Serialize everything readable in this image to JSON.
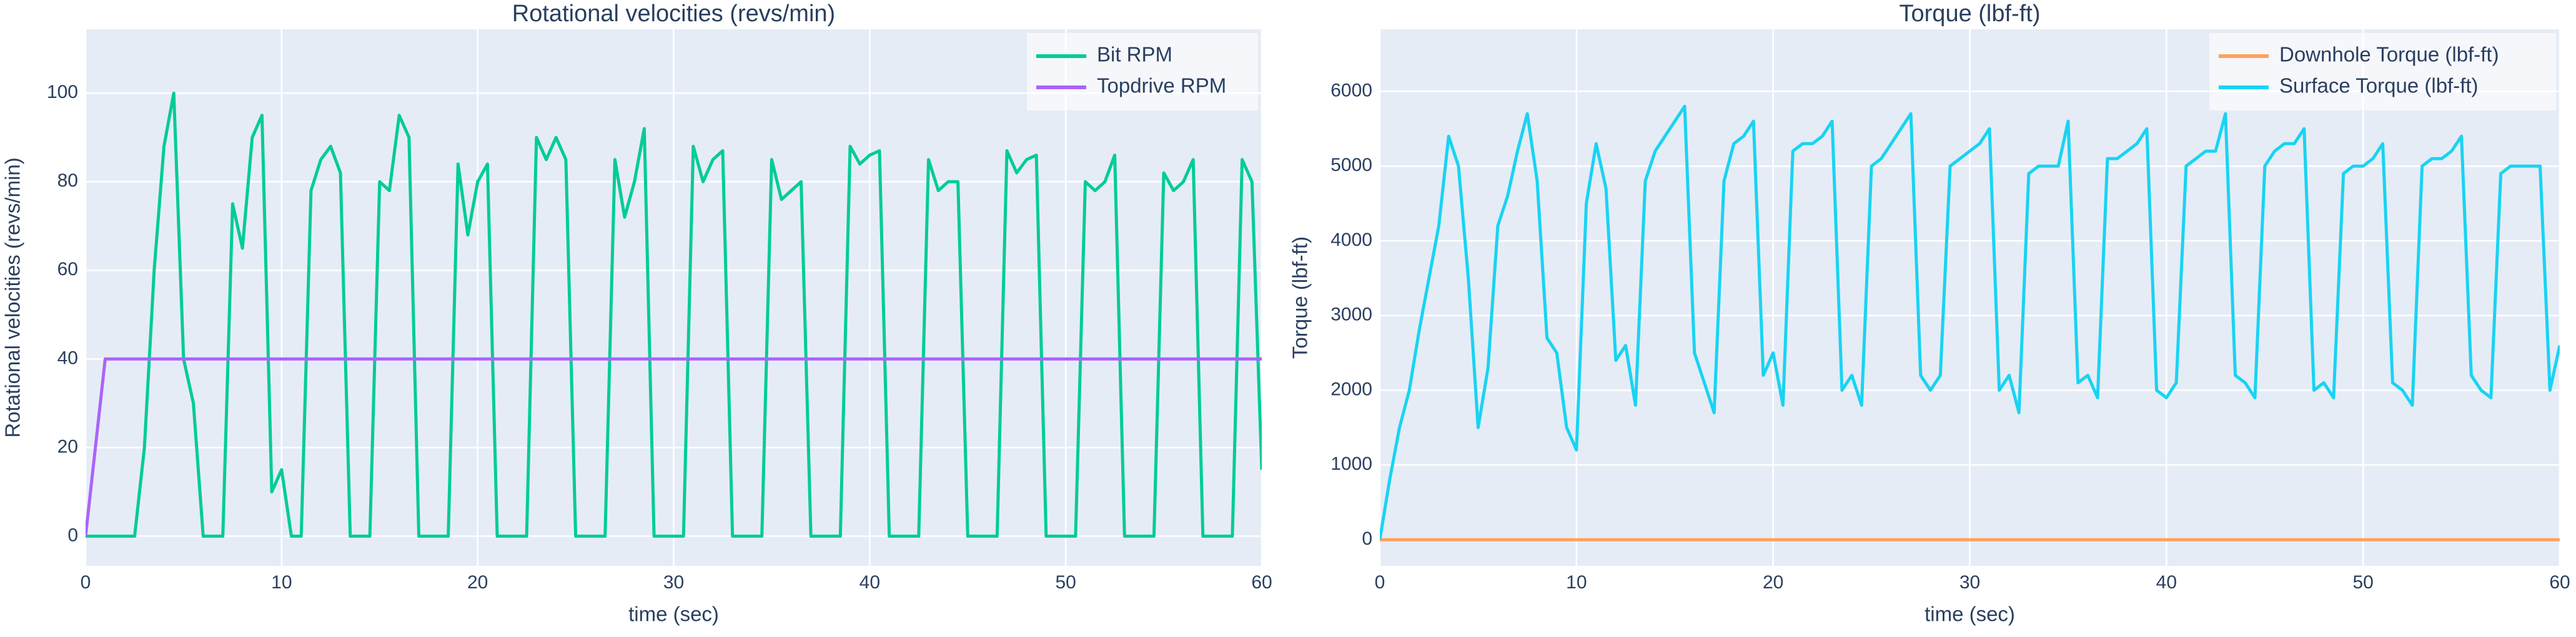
{
  "chart_data": [
    {
      "type": "line",
      "title": "Rotational velocities (revs/min)",
      "x_label": "time (sec)",
      "y_label": "Rotational velocities (revs/min)",
      "xlim": [
        0,
        60
      ],
      "xticks": [
        0,
        10,
        20,
        30,
        40,
        50,
        60
      ],
      "ylim": [
        -6.7,
        114.4
      ],
      "yticks": [
        0,
        20,
        40,
        60,
        80,
        100
      ],
      "grid": true,
      "legend": "top-right",
      "series": [
        {
          "name": "Bit RPM",
          "color": "#00cc96",
          "x": [
            0,
            0.5,
            1,
            1.5,
            2,
            2.5,
            3,
            3.5,
            4,
            4.5,
            5,
            5.5,
            6,
            6.5,
            7,
            7.5,
            8,
            8.5,
            9,
            9.5,
            10,
            10.5,
            11,
            11.5,
            12,
            12.5,
            13,
            13.5,
            14,
            14.5,
            15,
            15.5,
            16,
            16.5,
            17,
            17.5,
            18,
            18.5,
            19,
            19.5,
            20,
            20.5,
            21,
            21.5,
            22,
            22.5,
            23,
            23.5,
            24,
            24.5,
            25,
            25.5,
            26,
            26.5,
            27,
            27.5,
            28,
            28.5,
            29,
            29.5,
            30,
            30.5,
            31,
            31.5,
            32,
            32.5,
            33,
            33.5,
            34,
            34.5,
            35,
            35.5,
            36,
            36.5,
            37,
            37.5,
            38,
            38.5,
            39,
            39.5,
            40,
            40.5,
            41,
            41.5,
            42,
            42.5,
            43,
            43.5,
            44,
            44.5,
            45,
            45.5,
            46,
            46.5,
            47,
            47.5,
            48,
            48.5,
            49,
            49.5,
            50,
            50.5,
            51,
            51.5,
            52,
            52.5,
            53,
            53.5,
            54,
            54.5,
            55,
            55.5,
            56,
            56.5,
            57,
            57.5,
            58,
            58.5,
            59,
            59.5,
            60
          ],
          "values": [
            0,
            0,
            0,
            0,
            0,
            0,
            20,
            60,
            88,
            100,
            40,
            30,
            0,
            0,
            0,
            75,
            65,
            90,
            95,
            10,
            15,
            0,
            0,
            78,
            85,
            88,
            82,
            0,
            0,
            0,
            80,
            78,
            95,
            90,
            0,
            0,
            0,
            0,
            84,
            68,
            80,
            84,
            0,
            0,
            0,
            0,
            90,
            85,
            90,
            85,
            0,
            0,
            0,
            0,
            85,
            72,
            80,
            92,
            0,
            0,
            0,
            0,
            88,
            80,
            85,
            87,
            0,
            0,
            0,
            0,
            85,
            76,
            78,
            80,
            0,
            0,
            0,
            0,
            88,
            84,
            86,
            87,
            0,
            0,
            0,
            0,
            85,
            78,
            80,
            80,
            0,
            0,
            0,
            0,
            87,
            82,
            85,
            86,
            0,
            0,
            0,
            0,
            80,
            78,
            80,
            86,
            0,
            0,
            0,
            0,
            82,
            78,
            80,
            85,
            0,
            0,
            0,
            0,
            85,
            80,
            15
          ]
        },
        {
          "name": "Topdrive RPM",
          "color": "#ab63fa",
          "x": [
            0,
            1,
            60
          ],
          "values": [
            0,
            40,
            40
          ]
        }
      ]
    },
    {
      "type": "line",
      "title": "Torque (lbf-ft)",
      "x_label": "time (sec)",
      "y_label": "Torque (lbf-ft)",
      "xlim": [
        0,
        60
      ],
      "xticks": [
        0,
        10,
        20,
        30,
        40,
        50,
        60
      ],
      "ylim": [
        -350,
        6830
      ],
      "yticks": [
        0,
        1000,
        2000,
        3000,
        4000,
        5000,
        6000
      ],
      "grid": true,
      "legend": "top-right",
      "series": [
        {
          "name": "Downhole Torque (lbf-ft)",
          "color": "#ffa15a",
          "x": [
            0,
            60
          ],
          "values": [
            0,
            0
          ]
        },
        {
          "name": "Surface Torque (lbf-ft)",
          "color": "#19d3f3",
          "x": [
            0,
            0.5,
            1,
            1.5,
            2,
            2.5,
            3,
            3.5,
            4,
            4.5,
            5,
            5.5,
            6,
            6.5,
            7,
            7.5,
            8,
            8.5,
            9,
            9.5,
            10,
            10.5,
            11,
            11.5,
            12,
            12.5,
            13,
            13.5,
            14,
            14.5,
            15,
            15.5,
            16,
            16.5,
            17,
            17.5,
            18,
            18.5,
            19,
            19.5,
            20,
            20.5,
            21,
            21.5,
            22,
            22.5,
            23,
            23.5,
            24,
            24.5,
            25,
            25.5,
            26,
            26.5,
            27,
            27.5,
            28,
            28.5,
            29,
            29.5,
            30,
            30.5,
            31,
            31.5,
            32,
            32.5,
            33,
            33.5,
            34,
            34.5,
            35,
            35.5,
            36,
            36.5,
            37,
            37.5,
            38,
            38.5,
            39,
            39.5,
            40,
            40.5,
            41,
            41.5,
            42,
            42.5,
            43,
            43.5,
            44,
            44.5,
            45,
            45.5,
            46,
            46.5,
            47,
            47.5,
            48,
            48.5,
            49,
            49.5,
            50,
            50.5,
            51,
            51.5,
            52,
            52.5,
            53,
            53.5,
            54,
            54.5,
            55,
            55.5,
            56,
            56.5,
            57,
            57.5,
            58,
            58.5,
            59,
            59.5,
            60
          ],
          "values": [
            0,
            800,
            1500,
            2000,
            2800,
            3500,
            4200,
            5400,
            5000,
            3500,
            1500,
            2300,
            4200,
            4600,
            5200,
            5700,
            4800,
            2700,
            2500,
            1500,
            1200,
            4500,
            5300,
            4700,
            2400,
            2600,
            1800,
            4800,
            5200,
            5400,
            5600,
            5800,
            2500,
            2100,
            1700,
            4800,
            5300,
            5400,
            5600,
            2200,
            2500,
            1800,
            5200,
            5300,
            5300,
            5400,
            5600,
            2000,
            2200,
            1800,
            5000,
            5100,
            5300,
            5500,
            5700,
            2200,
            2000,
            2200,
            5000,
            5100,
            5200,
            5300,
            5500,
            2000,
            2200,
            1700,
            4900,
            5000,
            5000,
            5000,
            5600,
            2100,
            2200,
            1900,
            5100,
            5100,
            5200,
            5300,
            5500,
            2000,
            1900,
            2100,
            5000,
            5100,
            5200,
            5200,
            5700,
            2200,
            2100,
            1900,
            5000,
            5200,
            5300,
            5300,
            5500,
            2000,
            2100,
            1900,
            4900,
            5000,
            5000,
            5100,
            5300,
            2100,
            2000,
            1800,
            5000,
            5100,
            5100,
            5200,
            5400,
            2200,
            2000,
            1900,
            4900,
            5000,
            5000,
            5000,
            5000,
            2000,
            2600
          ]
        }
      ]
    }
  ]
}
